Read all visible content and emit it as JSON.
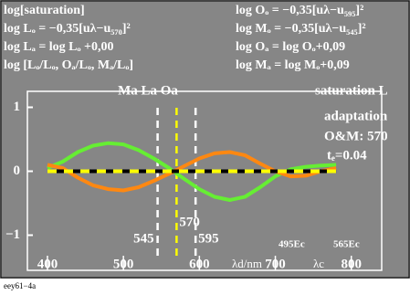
{
  "chart_data": {
    "type": "line",
    "header_left": [
      "log[saturation]",
      "log Lₒ = −0,35[uλ−u₅₇₀]²",
      "log Lₐ = log Lₒ +0,00",
      "log [Lₒ/Lₒ, Oₐ/Lₒ, Mₐ/Lₒ]"
    ],
    "header_right": [
      "log Oₒ = −0,35[uλ−u₅₉₅]²",
      "log Mₒ = −0,35[uλ−u₅₄₅]²",
      "log Oₐ = log Oₒ+0,09",
      "log Mₐ = log Mₒ+0,09"
    ],
    "annotations": [
      "Ma La Oa",
      "saturation L",
      "adaptation",
      "O&M: 570",
      "tₑ=0.04",
      "495Ec",
      "565Ec"
    ],
    "xlabel": "λd/nm",
    "xlabel2": "λc",
    "footer": "eey61−4a",
    "x": [
      400,
      420,
      440,
      460,
      480,
      500,
      520,
      540,
      560,
      580,
      600,
      620,
      640,
      660,
      680,
      700,
      720,
      740,
      760,
      780
    ],
    "series": [
      {
        "color": "#66ee33",
        "values": [
          0.05,
          0.15,
          0.3,
          0.4,
          0.44,
          0.42,
          0.33,
          0.2,
          0.05,
          -0.12,
          -0.28,
          -0.4,
          -0.45,
          -0.4,
          -0.25,
          -0.08,
          0.03,
          0.07,
          0.09,
          0.1
        ]
      },
      {
        "color": "#ff8811",
        "values": [
          0.1,
          0.05,
          -0.1,
          -0.22,
          -0.28,
          -0.3,
          -0.25,
          -0.15,
          -0.04,
          0.08,
          0.2,
          0.28,
          0.3,
          0.25,
          0.12,
          0.0,
          -0.08,
          -0.07,
          0.0,
          0.05
        ]
      },
      {
        "color": "#ffff00",
        "dashed": true,
        "values": [
          0,
          0,
          0,
          0,
          0,
          0,
          0,
          0,
          0,
          0,
          0,
          0,
          0,
          0,
          0,
          0,
          0,
          0,
          0,
          0
        ]
      }
    ],
    "vlines": [
      545,
      570,
      595
    ],
    "vline_colors": [
      "#ffffff",
      "#ffff00",
      "#ffffff"
    ],
    "xlim": [
      373.6,
      840
    ],
    "ylim": [
      -1.55,
      1.25
    ],
    "xticks": [
      400,
      500,
      600,
      700,
      800
    ],
    "yticks": [
      {
        "value": -1,
        "label": "−1"
      },
      0,
      1
    ]
  }
}
